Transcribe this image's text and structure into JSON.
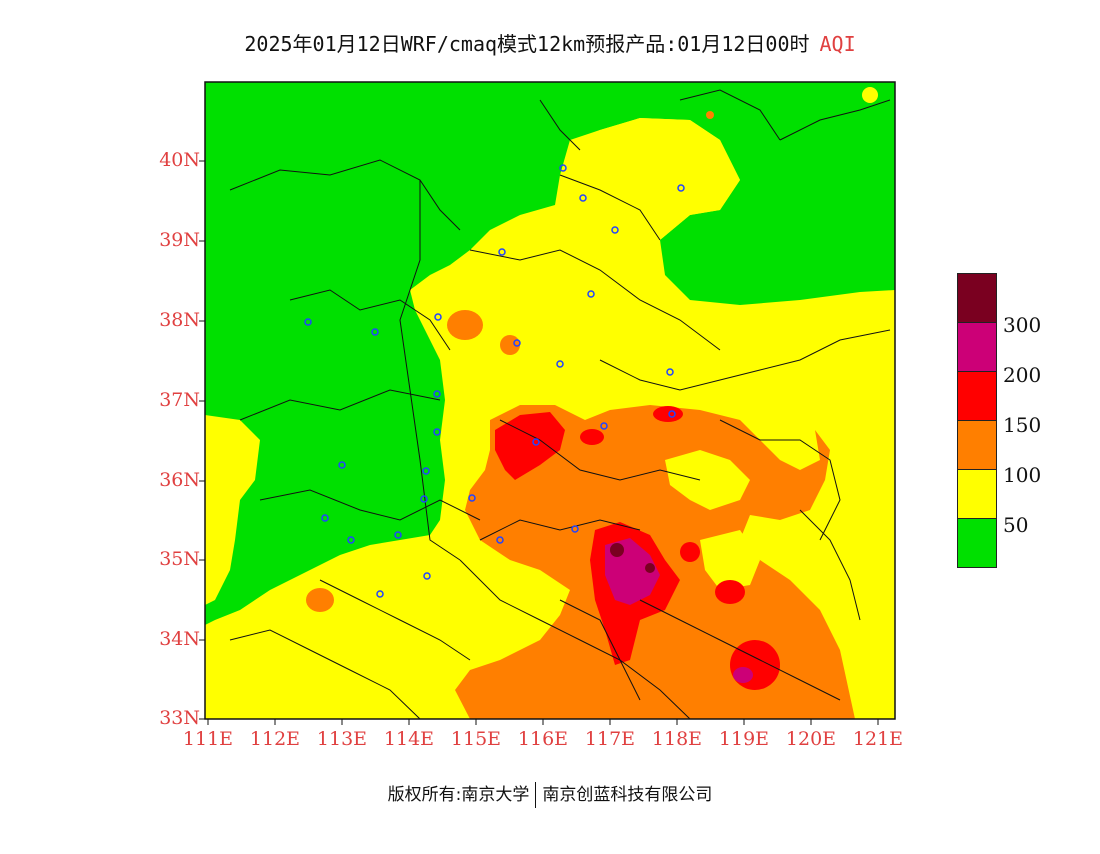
{
  "title": {
    "main": "2025年01月12日WRF/cmaq模式12km预报产品:01月12日00时",
    "variable": "AQI"
  },
  "axes": {
    "lat_labels": [
      "40N",
      "39N",
      "38N",
      "37N",
      "36N",
      "35N",
      "34N",
      "33N"
    ],
    "lon_labels": [
      "111E",
      "112E",
      "113E",
      "114E",
      "115E",
      "116E",
      "117E",
      "118E",
      "119E",
      "120E",
      "121E"
    ]
  },
  "legend": {
    "labels": [
      "300",
      "200",
      "150",
      "100",
      "50"
    ],
    "colors": [
      "#7a0020",
      "#cc0077",
      "#ff0000",
      "#ff7f00",
      "#ffff00",
      "#00e000"
    ]
  },
  "footer": {
    "copyright": "版权所有:南京大学",
    "company": "南京创蓝科技有限公司"
  },
  "colors": {
    "good": "#00e000",
    "moderate": "#ffff00",
    "usg": "#ff7f00",
    "unhealthy": "#ff0000",
    "very_unhealthy": "#cc0077",
    "hazardous": "#7a0020",
    "label_red": "#e04040"
  }
}
